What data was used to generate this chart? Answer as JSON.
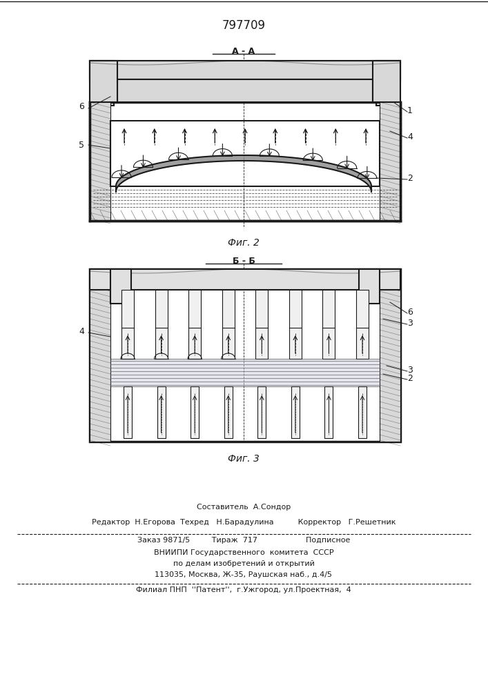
{
  "patent_number": "797709",
  "background_color": "#ffffff",
  "line_color": "#1a1a1a",
  "fig2_label": "Фиг. 2",
  "fig3_label": "Фиг. 3",
  "section_aa": "А - А",
  "section_bb": "Б - Б",
  "footer_line1": "Составитель  А.Сондор",
  "footer_line2": "Редактор  Н.Егорова  Техред   Н.Барадулина          Корректор   Г.Решетник",
  "footer_line3": "Заказ 9871/5         Тираж  717                    Подписное",
  "footer_line4": "ВНИИПИ Государственного  комитета  СССР",
  "footer_line5": "по делам изобретений и открытий",
  "footer_line6": "113035, Москва, Ж-35, Раушская наб., д.4/5",
  "footer_line7": "Филиал ПНП  ''Патент'',  г.Ужгород, ул.Проектная,  4"
}
